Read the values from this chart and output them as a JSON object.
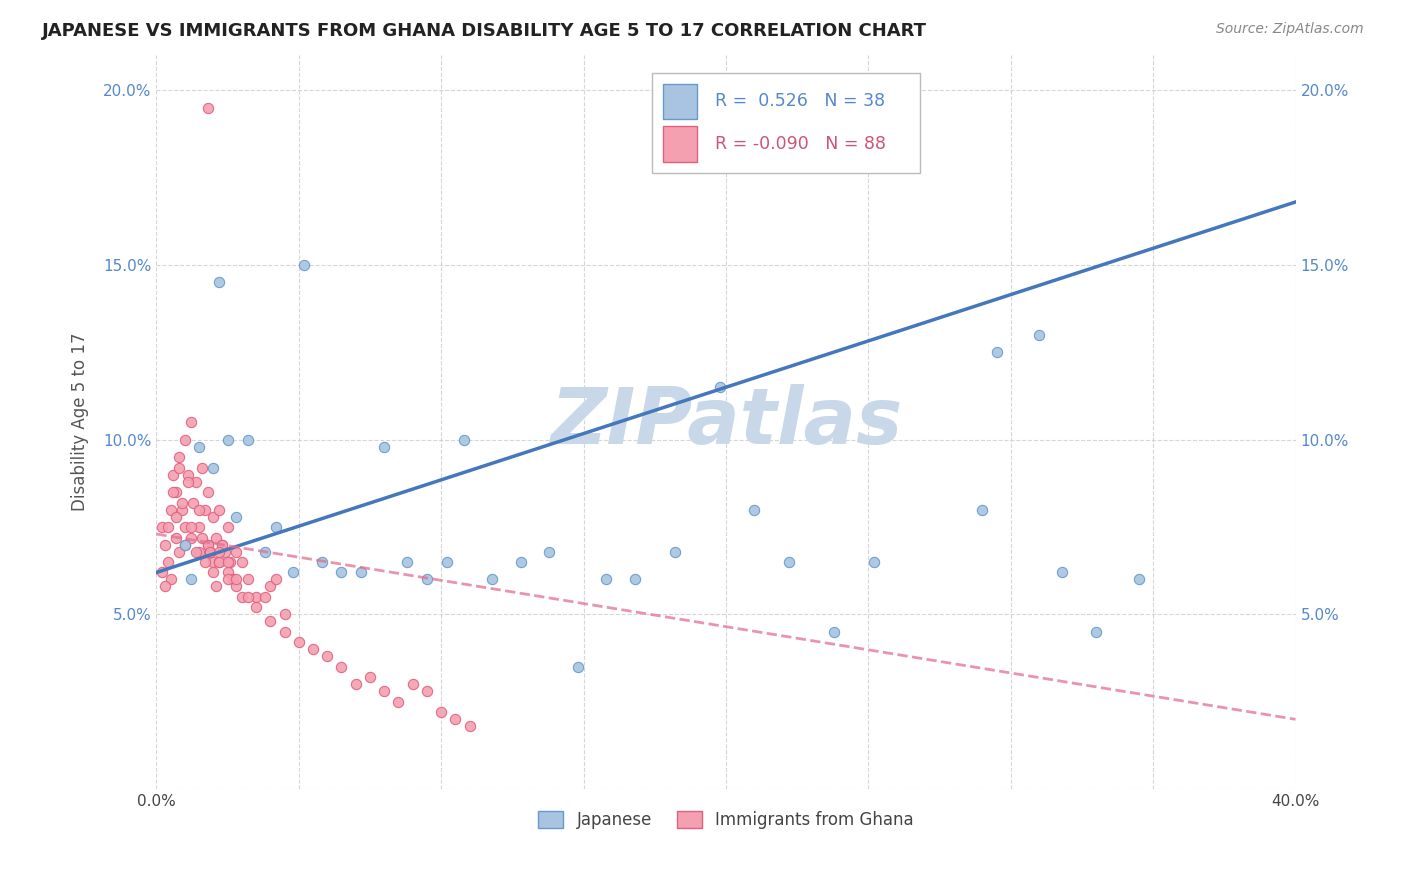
{
  "title": "JAPANESE VS IMMIGRANTS FROM GHANA DISABILITY AGE 5 TO 17 CORRELATION CHART",
  "source": "Source: ZipAtlas.com",
  "ylabel": "Disability Age 5 to 17",
  "xlim": [
    0.0,
    0.4
  ],
  "ylim": [
    0.0,
    0.21
  ],
  "xticks": [
    0.0,
    0.05,
    0.1,
    0.15,
    0.2,
    0.25,
    0.3,
    0.35,
    0.4
  ],
  "xtick_labels": [
    "0.0%",
    "",
    "",
    "",
    "",
    "",
    "",
    "",
    "40.0%"
  ],
  "yticks": [
    0.0,
    0.05,
    0.1,
    0.15,
    0.2
  ],
  "ytick_labels": [
    "",
    "5.0%",
    "10.0%",
    "15.0%",
    "20.0%"
  ],
  "japanese_R": 0.526,
  "japanese_N": 38,
  "ghana_R": -0.09,
  "ghana_N": 88,
  "japanese_color": "#a8c4e0",
  "japanese_edge_color": "#6699cc",
  "ghana_color": "#f4a0b0",
  "ghana_edge_color": "#e06080",
  "trend_japanese_color": "#4477bb",
  "trend_ghana_color": "#e07090",
  "watermark": "ZIPatlas",
  "watermark_color": "#c8d8e8",
  "trend_japanese_x0": 0.0,
  "trend_japanese_y0": 0.062,
  "trend_japanese_x1": 0.4,
  "trend_japanese_y1": 0.168,
  "trend_ghana_x0": 0.0,
  "trend_ghana_y0": 0.073,
  "trend_ghana_x1": 0.4,
  "trend_ghana_y1": 0.02,
  "japanese_points_x": [
    0.01,
    0.022,
    0.015,
    0.012,
    0.02,
    0.025,
    0.028,
    0.032,
    0.038,
    0.042,
    0.048,
    0.052,
    0.058,
    0.065,
    0.072,
    0.08,
    0.088,
    0.095,
    0.102,
    0.108,
    0.118,
    0.128,
    0.138,
    0.148,
    0.158,
    0.168,
    0.182,
    0.198,
    0.21,
    0.222,
    0.238,
    0.252,
    0.29,
    0.31,
    0.295,
    0.318,
    0.33,
    0.345
  ],
  "japanese_points_y": [
    0.07,
    0.145,
    0.098,
    0.06,
    0.092,
    0.1,
    0.078,
    0.1,
    0.068,
    0.075,
    0.062,
    0.15,
    0.065,
    0.062,
    0.062,
    0.098,
    0.065,
    0.06,
    0.065,
    0.1,
    0.06,
    0.065,
    0.068,
    0.035,
    0.06,
    0.06,
    0.068,
    0.115,
    0.08,
    0.065,
    0.045,
    0.065,
    0.08,
    0.13,
    0.125,
    0.062,
    0.045,
    0.06
  ],
  "ghana_points_x": [
    0.002,
    0.003,
    0.004,
    0.005,
    0.005,
    0.006,
    0.007,
    0.007,
    0.008,
    0.008,
    0.009,
    0.01,
    0.01,
    0.011,
    0.012,
    0.012,
    0.013,
    0.014,
    0.015,
    0.015,
    0.016,
    0.017,
    0.018,
    0.018,
    0.019,
    0.02,
    0.02,
    0.021,
    0.022,
    0.022,
    0.023,
    0.024,
    0.025,
    0.025,
    0.026,
    0.027,
    0.028,
    0.03,
    0.032,
    0.035,
    0.038,
    0.04,
    0.042,
    0.045,
    0.002,
    0.003,
    0.004,
    0.006,
    0.007,
    0.008,
    0.009,
    0.01,
    0.011,
    0.012,
    0.014,
    0.015,
    0.016,
    0.017,
    0.018,
    0.019,
    0.02,
    0.021,
    0.022,
    0.023,
    0.025,
    0.028,
    0.03,
    0.035,
    0.04,
    0.045,
    0.05,
    0.055,
    0.06,
    0.065,
    0.07,
    0.075,
    0.08,
    0.085,
    0.09,
    0.095,
    0.1,
    0.105,
    0.11,
    0.018,
    0.022,
    0.025,
    0.028,
    0.032
  ],
  "ghana_points_y": [
    0.075,
    0.07,
    0.065,
    0.08,
    0.06,
    0.09,
    0.085,
    0.072,
    0.068,
    0.095,
    0.08,
    0.1,
    0.075,
    0.09,
    0.105,
    0.072,
    0.082,
    0.088,
    0.075,
    0.068,
    0.092,
    0.08,
    0.085,
    0.07,
    0.068,
    0.078,
    0.065,
    0.072,
    0.08,
    0.065,
    0.07,
    0.068,
    0.062,
    0.075,
    0.065,
    0.06,
    0.068,
    0.065,
    0.06,
    0.055,
    0.055,
    0.058,
    0.06,
    0.05,
    0.062,
    0.058,
    0.075,
    0.085,
    0.078,
    0.092,
    0.082,
    0.07,
    0.088,
    0.075,
    0.068,
    0.08,
    0.072,
    0.065,
    0.07,
    0.068,
    0.062,
    0.058,
    0.065,
    0.07,
    0.06,
    0.058,
    0.055,
    0.052,
    0.048,
    0.045,
    0.042,
    0.04,
    0.038,
    0.035,
    0.03,
    0.032,
    0.028,
    0.025,
    0.03,
    0.028,
    0.022,
    0.02,
    0.018,
    0.195,
    0.068,
    0.065,
    0.06,
    0.055
  ]
}
